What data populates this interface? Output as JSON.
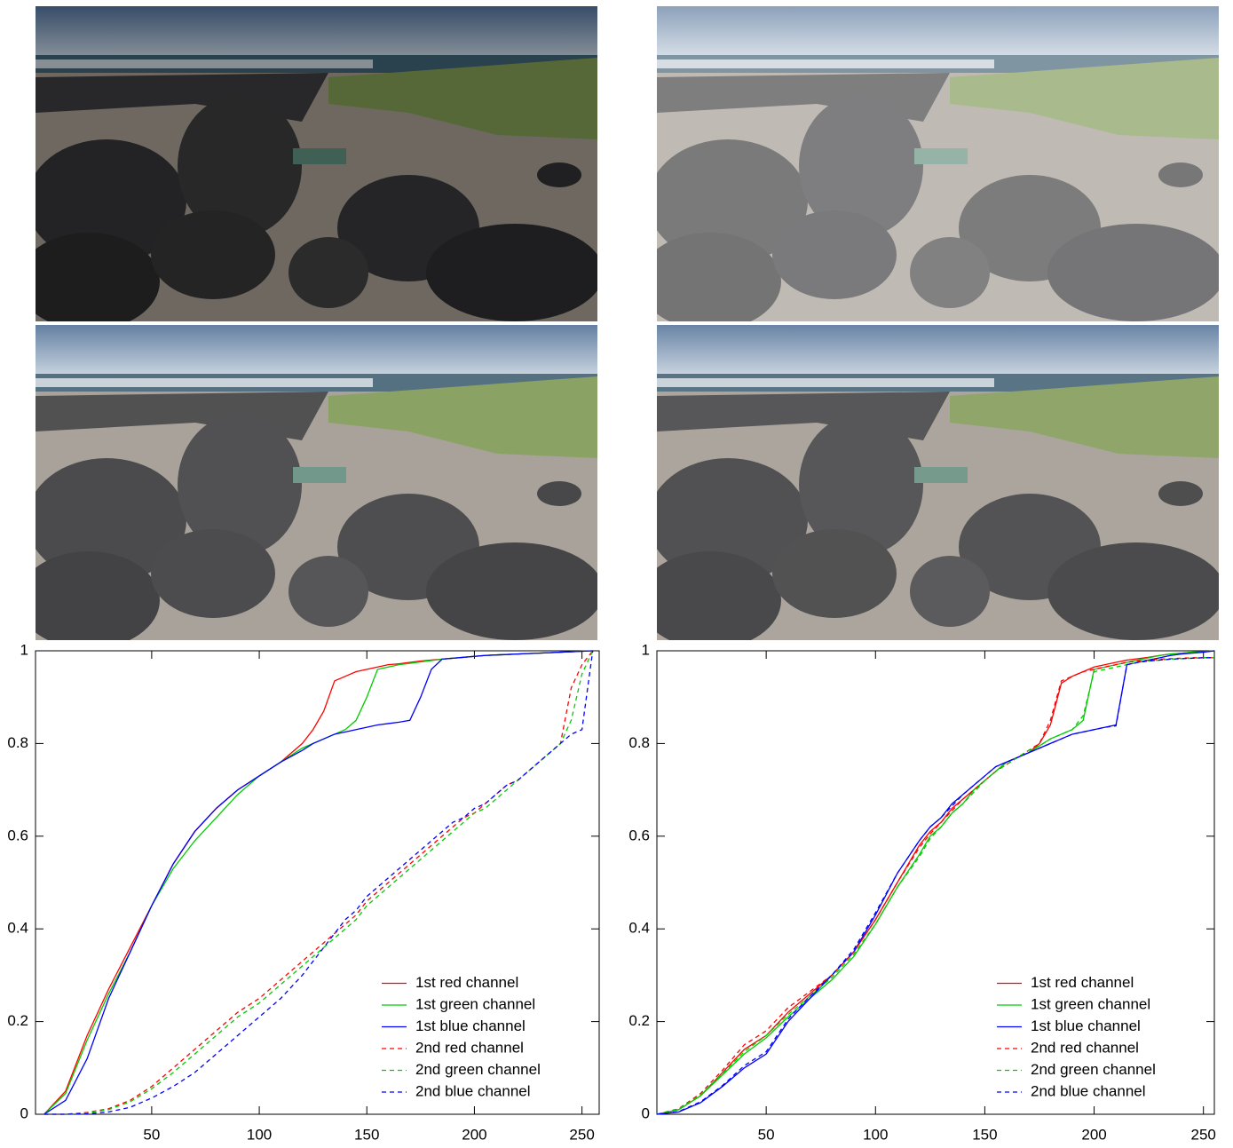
{
  "chart_data": [
    {
      "type": "line",
      "xlim": [
        -4,
        258
      ],
      "ylim": [
        0,
        1
      ],
      "xticks": [
        50,
        100,
        150,
        200,
        250
      ],
      "yticks": [
        0,
        0.2,
        0.4,
        0.6,
        0.8,
        1
      ],
      "legend": "bottom-right",
      "x": [
        0,
        10,
        20,
        30,
        40,
        50,
        60,
        70,
        80,
        90,
        100,
        110,
        120,
        125,
        130,
        135,
        140,
        145,
        150,
        155,
        160,
        165,
        170,
        175,
        180,
        185,
        190,
        195,
        200,
        205,
        210,
        215,
        220,
        225,
        230,
        235,
        240,
        245,
        250,
        255
      ],
      "series": [
        {
          "name": "1st red channel",
          "color": "#ff0000",
          "dash": false,
          "values": [
            0,
            0.05,
            0.17,
            0.27,
            0.36,
            0.45,
            0.54,
            0.61,
            0.66,
            0.7,
            0.73,
            0.76,
            0.8,
            0.83,
            0.87,
            0.935,
            0.945,
            0.955,
            0.96,
            0.965,
            0.97,
            0.972,
            0.975,
            0.978,
            0.98,
            0.982,
            0.984,
            0.986,
            0.988,
            0.99,
            0.991,
            0.992,
            0.993,
            0.994,
            0.995,
            0.996,
            0.997,
            0.998,
            0.999,
            1
          ]
        },
        {
          "name": "1st green channel",
          "color": "#00cc00",
          "dash": false,
          "values": [
            0,
            0.045,
            0.16,
            0.26,
            0.35,
            0.45,
            0.53,
            0.59,
            0.64,
            0.69,
            0.73,
            0.76,
            0.79,
            0.8,
            0.81,
            0.82,
            0.83,
            0.85,
            0.9,
            0.96,
            0.965,
            0.97,
            0.973,
            0.976,
            0.979,
            0.982,
            0.984,
            0.986,
            0.988,
            0.99,
            0.991,
            0.992,
            0.993,
            0.994,
            0.995,
            0.996,
            0.997,
            0.998,
            0.999,
            1
          ]
        },
        {
          "name": "1st blue channel",
          "color": "#0000ff",
          "dash": false,
          "values": [
            0,
            0.03,
            0.12,
            0.25,
            0.35,
            0.45,
            0.54,
            0.61,
            0.66,
            0.7,
            0.73,
            0.76,
            0.785,
            0.8,
            0.81,
            0.82,
            0.825,
            0.83,
            0.835,
            0.84,
            0.843,
            0.846,
            0.85,
            0.9,
            0.96,
            0.982,
            0.984,
            0.986,
            0.988,
            0.99,
            0.991,
            0.992,
            0.993,
            0.994,
            0.995,
            0.996,
            0.997,
            0.998,
            0.999,
            1
          ]
        },
        {
          "name": "2nd red channel",
          "color": "#ff0000",
          "dash": true,
          "values": [
            0,
            0,
            0.004,
            0.012,
            0.03,
            0.06,
            0.1,
            0.14,
            0.18,
            0.22,
            0.25,
            0.29,
            0.33,
            0.35,
            0.37,
            0.39,
            0.41,
            0.43,
            0.46,
            0.48,
            0.5,
            0.52,
            0.54,
            0.56,
            0.58,
            0.6,
            0.62,
            0.64,
            0.65,
            0.67,
            0.69,
            0.71,
            0.72,
            0.74,
            0.76,
            0.78,
            0.8,
            0.92,
            0.97,
            1
          ]
        },
        {
          "name": "2nd green channel",
          "color": "#00cc00",
          "dash": true,
          "values": [
            0,
            0,
            0.003,
            0.01,
            0.027,
            0.055,
            0.09,
            0.13,
            0.17,
            0.21,
            0.24,
            0.28,
            0.32,
            0.34,
            0.36,
            0.38,
            0.4,
            0.42,
            0.45,
            0.47,
            0.49,
            0.51,
            0.53,
            0.55,
            0.57,
            0.59,
            0.61,
            0.63,
            0.65,
            0.66,
            0.68,
            0.7,
            0.72,
            0.74,
            0.76,
            0.78,
            0.8,
            0.85,
            0.95,
            1
          ]
        },
        {
          "name": "2nd blue channel",
          "color": "#0000ff",
          "dash": true,
          "values": [
            0,
            0,
            0.001,
            0.005,
            0.015,
            0.035,
            0.06,
            0.09,
            0.13,
            0.17,
            0.21,
            0.25,
            0.3,
            0.33,
            0.36,
            0.39,
            0.42,
            0.44,
            0.47,
            0.49,
            0.51,
            0.53,
            0.55,
            0.57,
            0.59,
            0.61,
            0.63,
            0.64,
            0.66,
            0.67,
            0.69,
            0.71,
            0.72,
            0.74,
            0.76,
            0.78,
            0.8,
            0.82,
            0.83,
            1
          ]
        }
      ]
    },
    {
      "type": "line",
      "xlim": [
        0,
        255
      ],
      "ylim": [
        0,
        1
      ],
      "xticks": [
        50,
        100,
        150,
        200,
        250
      ],
      "yticks": [
        0,
        0.2,
        0.4,
        0.6,
        0.8,
        1
      ],
      "legend": "bottom-right",
      "x": [
        0,
        10,
        20,
        30,
        40,
        50,
        60,
        70,
        80,
        90,
        100,
        110,
        120,
        125,
        130,
        135,
        140,
        145,
        150,
        155,
        160,
        165,
        170,
        175,
        180,
        185,
        190,
        195,
        200,
        205,
        210,
        215,
        220,
        225,
        230,
        235,
        240,
        245,
        250,
        255
      ],
      "series": [
        {
          "name": "1st red channel",
          "color": "#ff0000",
          "dash": false,
          "values": [
            0,
            0.01,
            0.04,
            0.09,
            0.14,
            0.17,
            0.22,
            0.26,
            0.3,
            0.35,
            0.42,
            0.5,
            0.58,
            0.61,
            0.63,
            0.66,
            0.68,
            0.7,
            0.72,
            0.74,
            0.76,
            0.77,
            0.78,
            0.8,
            0.84,
            0.93,
            0.945,
            0.955,
            0.965,
            0.97,
            0.975,
            0.98,
            0.983,
            0.986,
            0.99,
            0.993,
            0.995,
            0.997,
            0.998,
            1
          ]
        },
        {
          "name": "1st green channel",
          "color": "#00cc00",
          "dash": false,
          "values": [
            0,
            0.01,
            0.04,
            0.085,
            0.13,
            0.165,
            0.21,
            0.25,
            0.29,
            0.34,
            0.41,
            0.49,
            0.56,
            0.6,
            0.62,
            0.65,
            0.67,
            0.7,
            0.72,
            0.74,
            0.76,
            0.77,
            0.78,
            0.795,
            0.81,
            0.82,
            0.83,
            0.85,
            0.96,
            0.965,
            0.97,
            0.975,
            0.98,
            0.985,
            0.99,
            0.993,
            0.995,
            0.997,
            0.998,
            1
          ]
        },
        {
          "name": "1st blue channel",
          "color": "#0000ff",
          "dash": false,
          "values": [
            0,
            0.005,
            0.025,
            0.06,
            0.1,
            0.13,
            0.2,
            0.25,
            0.3,
            0.35,
            0.43,
            0.52,
            0.59,
            0.62,
            0.64,
            0.67,
            0.69,
            0.71,
            0.73,
            0.75,
            0.76,
            0.77,
            0.78,
            0.79,
            0.8,
            0.81,
            0.82,
            0.825,
            0.83,
            0.835,
            0.84,
            0.97,
            0.975,
            0.98,
            0.985,
            0.99,
            0.993,
            0.995,
            0.997,
            1
          ]
        },
        {
          "name": "2nd red channel",
          "color": "#ff0000",
          "dash": true,
          "values": [
            0,
            0.012,
            0.045,
            0.095,
            0.15,
            0.18,
            0.23,
            0.265,
            0.3,
            0.35,
            0.42,
            0.5,
            0.575,
            0.605,
            0.63,
            0.655,
            0.68,
            0.7,
            0.72,
            0.74,
            0.755,
            0.77,
            0.785,
            0.8,
            0.85,
            0.935,
            0.945,
            0.955,
            0.96,
            0.965,
            0.97,
            0.975,
            0.978,
            0.98,
            0.982,
            0.983,
            0.984,
            0.985,
            0.985,
            0.985
          ]
        },
        {
          "name": "2nd green channel",
          "color": "#00cc00",
          "dash": true,
          "values": [
            0,
            0.011,
            0.042,
            0.088,
            0.135,
            0.17,
            0.215,
            0.255,
            0.295,
            0.345,
            0.41,
            0.49,
            0.555,
            0.595,
            0.62,
            0.65,
            0.67,
            0.695,
            0.72,
            0.74,
            0.755,
            0.77,
            0.785,
            0.795,
            0.81,
            0.82,
            0.83,
            0.86,
            0.955,
            0.96,
            0.965,
            0.97,
            0.975,
            0.978,
            0.98,
            0.982,
            0.983,
            0.984,
            0.985,
            0.985
          ]
        },
        {
          "name": "2nd blue channel",
          "color": "#0000ff",
          "dash": true,
          "values": [
            0,
            0.006,
            0.027,
            0.062,
            0.105,
            0.135,
            0.205,
            0.255,
            0.3,
            0.355,
            0.435,
            0.52,
            0.59,
            0.62,
            0.64,
            0.665,
            0.69,
            0.71,
            0.73,
            0.75,
            0.76,
            0.77,
            0.78,
            0.79,
            0.8,
            0.81,
            0.82,
            0.825,
            0.83,
            0.835,
            0.838,
            0.97,
            0.975,
            0.978,
            0.98,
            0.982,
            0.983,
            0.984,
            0.985,
            0.985
          ]
        }
      ]
    }
  ]
}
